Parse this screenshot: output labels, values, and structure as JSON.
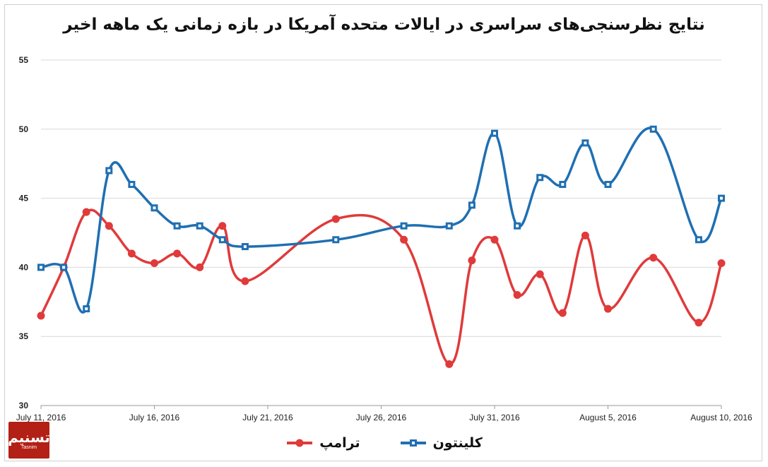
{
  "chart_data": {
    "type": "line",
    "title": "نتایج نظرسنجی‌های سراسری در ایالات متحده آمریکا در بازه زمانی یک ماهه اخیر",
    "xlabel": "",
    "ylabel": "",
    "ylim": [
      30,
      55
    ],
    "yticks": [
      "30",
      "35",
      "40",
      "45",
      "50",
      "55"
    ],
    "xlim": [
      "2016-07-11",
      "2016-08-10"
    ],
    "xticks": [
      {
        "date": "2016-07-11",
        "label": "July 11, 2016"
      },
      {
        "date": "2016-07-16",
        "label": "July 16, 2016"
      },
      {
        "date": "2016-07-21",
        "label": "July 21, 2016"
      },
      {
        "date": "2016-07-26",
        "label": "July 26, 2016"
      },
      {
        "date": "2016-07-31",
        "label": "July 31, 2016"
      },
      {
        "date": "2016-08-05",
        "label": "August 5, 2016"
      },
      {
        "date": "2016-08-10",
        "label": "August 10, 2016"
      }
    ],
    "grid": true,
    "legend_position": "bottom",
    "series": [
      {
        "name": "کلینتون",
        "color": "#1f6fb2",
        "marker": "square",
        "x": [
          "2016-07-11",
          "2016-07-12",
          "2016-07-13",
          "2016-07-14",
          "2016-07-15",
          "2016-07-16",
          "2016-07-17",
          "2016-07-18",
          "2016-07-19",
          "2016-07-20",
          "2016-07-24",
          "2016-07-27",
          "2016-07-29",
          "2016-07-30",
          "2016-07-31",
          "2016-08-01",
          "2016-08-02",
          "2016-08-03",
          "2016-08-04",
          "2016-08-05",
          "2016-08-07",
          "2016-08-09",
          "2016-08-10"
        ],
        "values": [
          40,
          40,
          37,
          47,
          46,
          44.3,
          43,
          43,
          42,
          41.5,
          42,
          43,
          43,
          44.5,
          49.7,
          43,
          46.5,
          46,
          49,
          46,
          50,
          42,
          45
        ]
      },
      {
        "name": "ترامپ",
        "color": "#e03a3a",
        "marker": "circle",
        "x": [
          "2016-07-11",
          "2016-07-12",
          "2016-07-13",
          "2016-07-14",
          "2016-07-15",
          "2016-07-16",
          "2016-07-17",
          "2016-07-18",
          "2016-07-19",
          "2016-07-20",
          "2016-07-24",
          "2016-07-27",
          "2016-07-29",
          "2016-07-30",
          "2016-07-31",
          "2016-08-01",
          "2016-08-02",
          "2016-08-03",
          "2016-08-04",
          "2016-08-05",
          "2016-08-07",
          "2016-08-09",
          "2016-08-10"
        ],
        "values": [
          36.5,
          40,
          44,
          43,
          41,
          40.3,
          41,
          40,
          43,
          39,
          43.5,
          42,
          33,
          40.5,
          42,
          38,
          39.5,
          36.7,
          42.3,
          37,
          40.7,
          36,
          40.3
        ]
      }
    ]
  },
  "logo": {
    "mark": "تسنیم",
    "sub": "Tasnim"
  }
}
